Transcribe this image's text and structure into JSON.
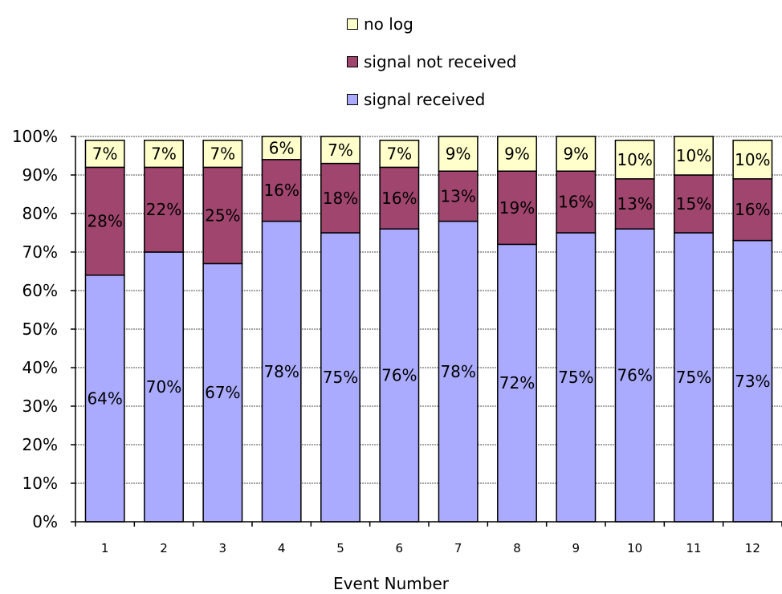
{
  "chart_data": {
    "type": "bar",
    "stacked": true,
    "normalized": true,
    "xlabel": "Event Number",
    "ylabel": "",
    "title": "",
    "ylim": [
      0,
      100
    ],
    "yticks": [
      "0%",
      "10%",
      "20%",
      "30%",
      "40%",
      "50%",
      "60%",
      "70%",
      "80%",
      "90%",
      "100%"
    ],
    "categories": [
      "1",
      "2",
      "3",
      "4",
      "5",
      "6",
      "7",
      "8",
      "9",
      "10",
      "11",
      "12"
    ],
    "series": [
      {
        "name": "signal received",
        "color": "#aaaaff",
        "values": [
          64,
          70,
          67,
          78,
          75,
          76,
          78,
          72,
          75,
          76,
          75,
          73
        ]
      },
      {
        "name": "signal not received",
        "color": "#a0466e",
        "values": [
          28,
          22,
          25,
          16,
          18,
          16,
          13,
          19,
          16,
          13,
          15,
          16
        ]
      },
      {
        "name": "no log",
        "color": "#ffffcc",
        "values": [
          7,
          7,
          7,
          6,
          7,
          7,
          9,
          9,
          9,
          10,
          10,
          10
        ]
      }
    ],
    "legend": {
      "position": "top-center",
      "order": [
        "no log",
        "signal not received",
        "signal received"
      ]
    },
    "grid": true
  }
}
